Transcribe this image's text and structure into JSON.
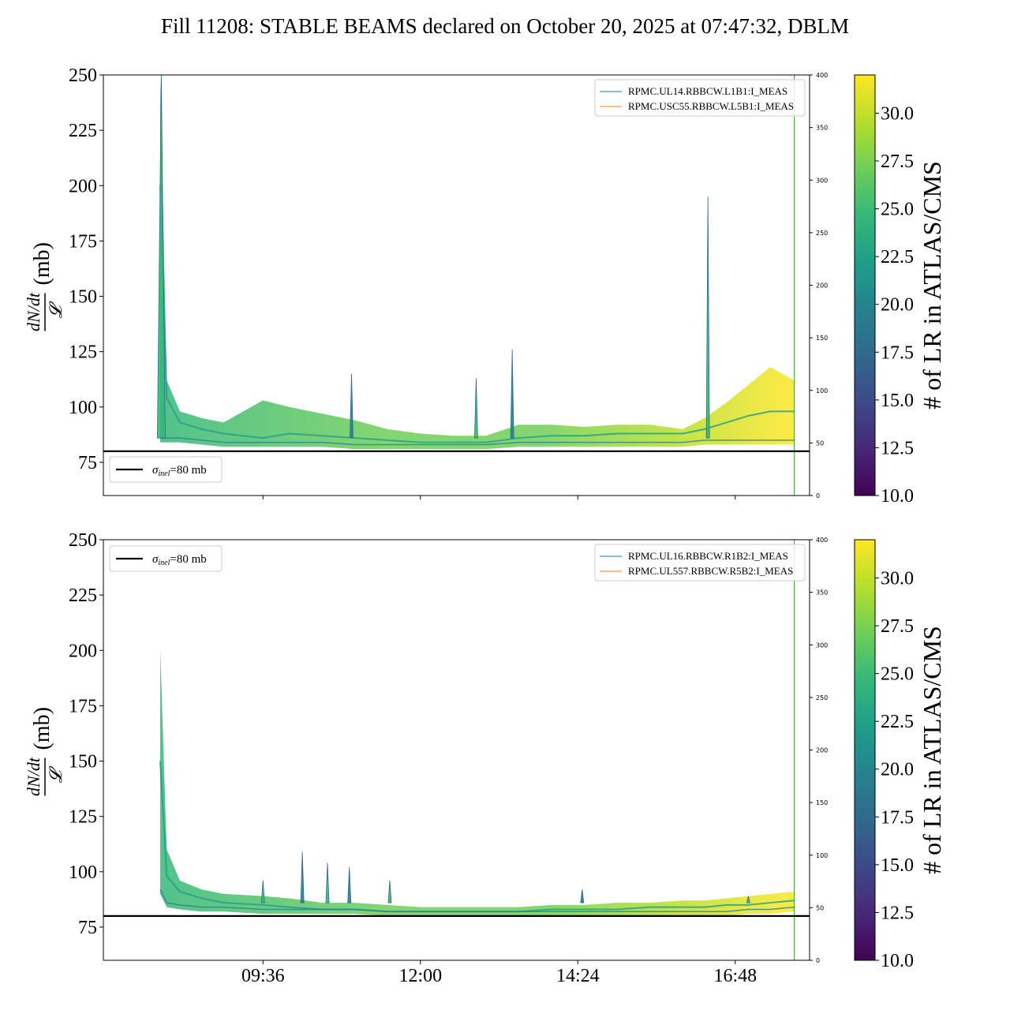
{
  "title": "Fill 11208: STABLE BEAMS declared on October 20, 2025 at 07:47:32, DBLM",
  "colors": {
    "viridis": [
      "#440154",
      "#482878",
      "#3e4989",
      "#31688e",
      "#26828e",
      "#1f9e89",
      "#35b779",
      "#6ece58",
      "#b5de2b",
      "#fde725"
    ],
    "reference_line": "#000000",
    "bpm_blue": "#1f77b4",
    "bpm_orange": "#ff7f0e",
    "end_marker": "#2ca02c"
  },
  "chart_data": [
    {
      "type": "line",
      "panel": "top",
      "ylabel": "(mb)",
      "ylabel_fraction": {
        "numerator": "dN/dt",
        "denominator": "𝓛"
      },
      "ylim": [
        60,
        250
      ],
      "yticks": [
        75,
        100,
        125,
        150,
        175,
        200,
        225,
        250
      ],
      "xticks": [],
      "right_ylim": [
        0,
        400
      ],
      "right_yticks": [
        0,
        50,
        100,
        150,
        200,
        250,
        300,
        350,
        400
      ],
      "reference": {
        "value": 80,
        "label": "σinel=80 mb",
        "label_sym": "σ",
        "label_sub": "inel",
        "label_rest": "=80 mb"
      },
      "legend": [
        "RPMC.UL14.RBBCW.L1B1:I_MEAS",
        "RPMC.USC55.RBBCW.L5B1:I_MEAS"
      ],
      "colorbar": {
        "label": "# of LR in ATLAS/CMS",
        "range": [
          10.0,
          32.0
        ],
        "ticks": [
          "10.0",
          "12.5",
          "15.0",
          "17.5",
          "20.0",
          "22.5",
          "25.0",
          "27.5",
          "30.0"
        ]
      },
      "envelope": {
        "t": [
          "08:02",
          "08:08",
          "08:20",
          "08:40",
          "09:00",
          "09:36",
          "10:00",
          "10:30",
          "11:00",
          "11:30",
          "12:00",
          "12:30",
          "13:00",
          "13:30",
          "14:00",
          "14:30",
          "15:00",
          "15:30",
          "16:00",
          "16:20",
          "16:40",
          "17:00",
          "17:20",
          "17:42"
        ],
        "low": [
          84,
          84,
          84,
          83,
          82,
          82,
          82,
          82,
          81,
          81,
          81,
          81,
          81,
          82,
          82,
          82,
          82,
          82,
          82,
          83,
          83,
          83,
          83,
          83
        ],
        "mid": [
          200,
          104,
          93,
          90,
          88,
          86,
          88,
          87,
          86,
          85,
          84,
          84,
          84,
          86,
          87,
          87,
          88,
          88,
          88,
          90,
          93,
          96,
          98,
          98
        ],
        "high": [
          250,
          112,
          98,
          95,
          93,
          103,
          100,
          97,
          94,
          90,
          88,
          87,
          87,
          92,
          92,
          91,
          92,
          92,
          90,
          95,
          102,
          110,
          118,
          112
        ]
      },
      "spikes": [
        {
          "t": "08:03",
          "peak": 250
        },
        {
          "t": "10:57",
          "peak": 115
        },
        {
          "t": "12:51",
          "peak": 113
        },
        {
          "t": "13:24",
          "peak": 126
        },
        {
          "t": "16:23",
          "peak": 195
        }
      ],
      "end_time": "17:42"
    },
    {
      "type": "line",
      "panel": "bottom",
      "ylabel": "(mb)",
      "ylabel_fraction": {
        "numerator": "dN/dt",
        "denominator": "𝓛"
      },
      "ylim": [
        60,
        250
      ],
      "yticks": [
        75,
        100,
        125,
        150,
        175,
        200,
        225,
        250
      ],
      "xticks": [
        "09:36",
        "12:00",
        "14:24",
        "16:48"
      ],
      "right_ylim": [
        0,
        400
      ],
      "right_yticks": [
        0,
        50,
        100,
        150,
        200,
        250,
        300,
        350,
        400
      ],
      "reference": {
        "value": 80,
        "label": "σinel=80 mb",
        "label_sym": "σ",
        "label_sub": "inel",
        "label_rest": "=80 mb"
      },
      "legend": [
        "RPMC.UL16.RBBCW.R1B2:I_MEAS",
        "RPMC.UL557.RBBCW.R5B2:I_MEAS"
      ],
      "colorbar": {
        "label": "# of LR in ATLAS/CMS",
        "range": [
          10.0,
          32.0
        ],
        "ticks": [
          "10.0",
          "12.5",
          "15.0",
          "17.5",
          "20.0",
          "22.5",
          "25.0",
          "27.5",
          "30.0"
        ]
      },
      "envelope": {
        "t": [
          "08:02",
          "08:08",
          "08:20",
          "08:40",
          "09:00",
          "09:36",
          "10:00",
          "10:30",
          "11:00",
          "11:30",
          "12:00",
          "12:30",
          "13:00",
          "13:30",
          "14:00",
          "14:30",
          "15:00",
          "15:30",
          "16:00",
          "16:20",
          "16:40",
          "17:00",
          "17:20",
          "17:42"
        ],
        "low": [
          90,
          84,
          83,
          82,
          82,
          81,
          81,
          81,
          81,
          80,
          80,
          80,
          80,
          80,
          80,
          80,
          80,
          80,
          80,
          80,
          80,
          81,
          81,
          82
        ],
        "mid": [
          150,
          98,
          91,
          88,
          86,
          85,
          84,
          83,
          83,
          82,
          82,
          82,
          82,
          82,
          83,
          83,
          83,
          84,
          84,
          84,
          85,
          85,
          86,
          87
        ],
        "high": [
          200,
          110,
          96,
          92,
          90,
          89,
          88,
          86,
          86,
          85,
          84,
          84,
          84,
          84,
          85,
          85,
          86,
          86,
          87,
          87,
          88,
          89,
          90,
          91
        ]
      },
      "spikes": [
        {
          "t": "09:36",
          "peak": 96
        },
        {
          "t": "10:12",
          "peak": 109
        },
        {
          "t": "10:35",
          "peak": 104
        },
        {
          "t": "10:55",
          "peak": 102
        },
        {
          "t": "11:32",
          "peak": 96
        },
        {
          "t": "14:28",
          "peak": 92
        },
        {
          "t": "17:00",
          "peak": 89
        }
      ],
      "end_time": "17:42"
    }
  ]
}
